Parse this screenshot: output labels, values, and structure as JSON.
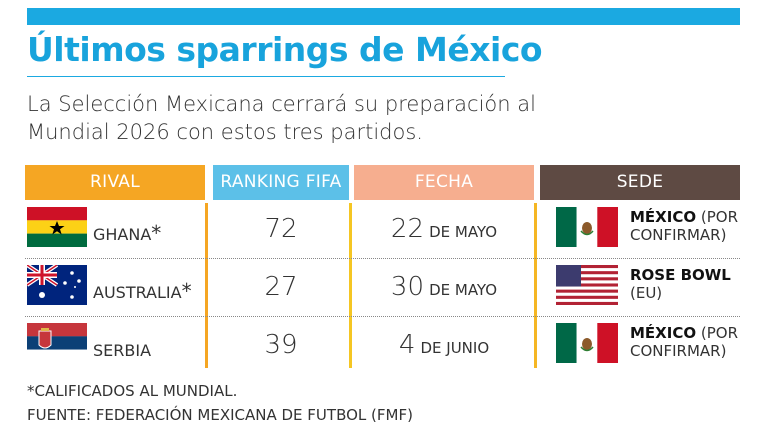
{
  "title": "Últimos sparrings de México",
  "subtitle": "La Selección Mexicana cerrará su preparación al Mundial 2026 con estos tres partidos.",
  "headers": {
    "rival": "RIVAL",
    "ranking": "RANKING FIFA",
    "fecha": "FECHA",
    "sede": "SEDE"
  },
  "rows": [
    {
      "rival": "GHANA",
      "asterisk": "*",
      "flag": "ghana-flag",
      "ranking": "72",
      "day": "22",
      "month": "DE MAYO",
      "venue_flag": "mexico-flag",
      "venue_bold": "MÉXICO",
      "venue_rest": " (POR CONFIRMAR)"
    },
    {
      "rival": "AUSTRALIA",
      "asterisk": "*",
      "flag": "australia-flag",
      "ranking": "27",
      "day": "30",
      "month": "DE MAYO",
      "venue_flag": "usa-flag",
      "venue_bold": "ROSE BOWL",
      "venue_rest": "(EU)"
    },
    {
      "rival": "SERBIA",
      "asterisk": "",
      "flag": "serbia-flag",
      "ranking": "39",
      "day": "4",
      "month": "DE JUNIO",
      "venue_flag": "mexico-flag",
      "venue_bold": "MÉXICO",
      "venue_rest": " (POR CONFIRMAR)"
    }
  ],
  "footnote": "*CALIFICADOS AL MUNDIAL.",
  "source": "FUENTE: FEDERACIÓN MEXICANA DE FUTBOL (FMF)",
  "colors": {
    "title": "#18a3dc",
    "rival": "#f5a623",
    "ranking": "#5cc0e8",
    "fecha": "#f6ae8f",
    "sede": "#5e4a43"
  }
}
